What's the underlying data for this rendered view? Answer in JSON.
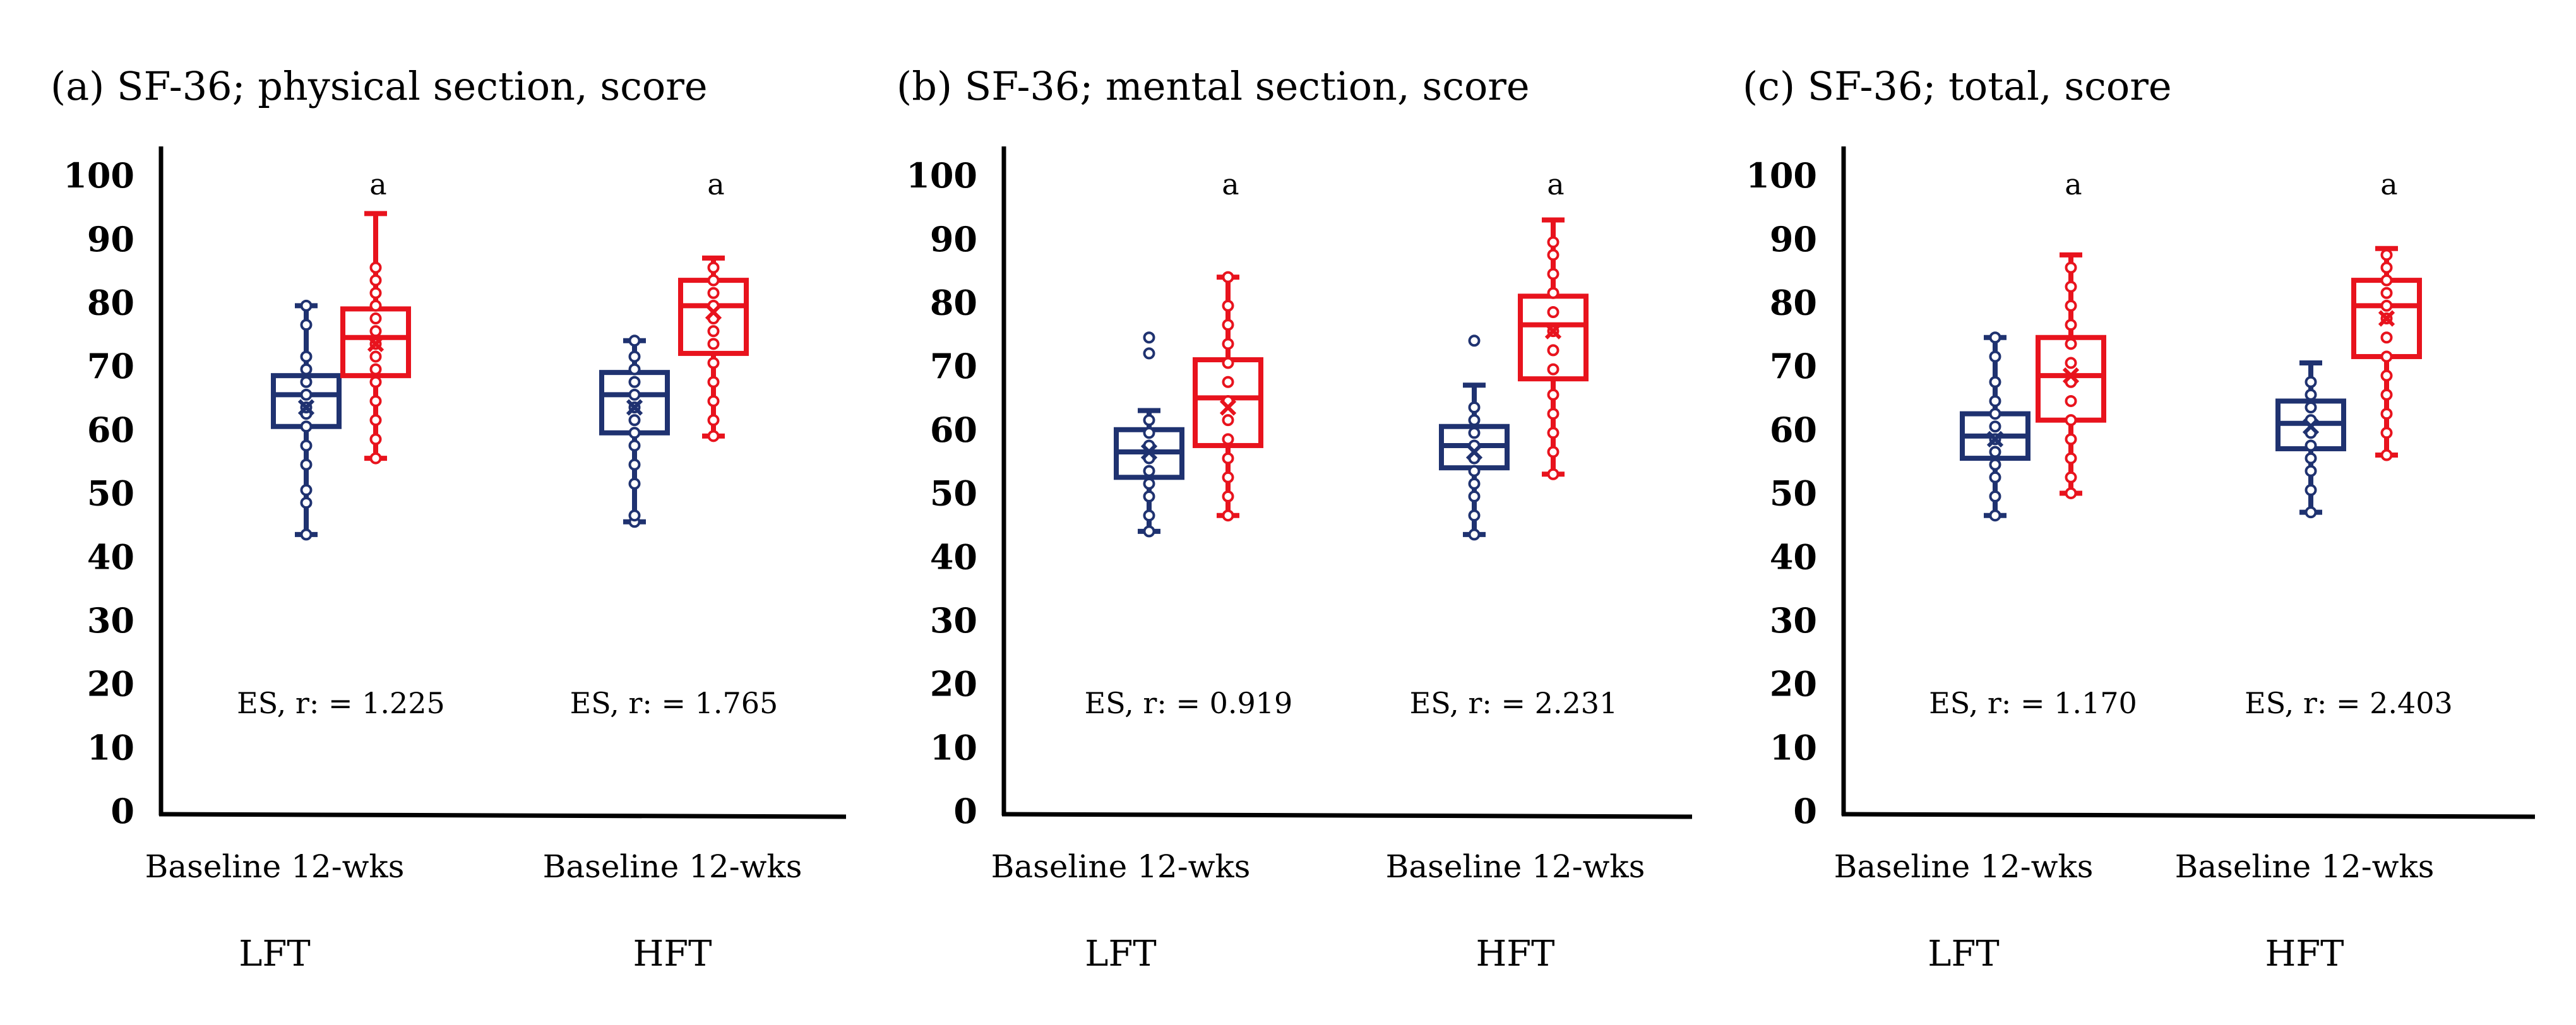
{
  "chart_data": [
    {
      "type": "box",
      "title": "(a) SF-36; physical section, score",
      "ylim": [
        0,
        100
      ],
      "yticks": [
        "0",
        "10",
        "20",
        "30",
        "40",
        "50",
        "60",
        "70",
        "80",
        "90",
        "100"
      ],
      "groups": [
        {
          "name": "LFT",
          "timepoints": "Baseline 12-wks",
          "effect_size": "ES,  r: = 1.225",
          "sig_letter": "a",
          "baseline": {
            "min": 44,
            "q1": 61,
            "median": 66,
            "q3": 69,
            "max": 80,
            "mean": 64,
            "points": [
              44,
              49,
              51,
              55,
              58,
              61,
              63,
              64,
              66,
              68,
              70,
              72,
              77,
              80
            ]
          },
          "week12": {
            "min": 56,
            "q1": 69,
            "median": 75,
            "q3": 79.5,
            "max": 94.5,
            "mean": 74,
            "points": [
              56,
              59,
              62,
              65,
              68,
              70,
              72,
              74,
              76,
              78,
              80,
              82,
              84,
              86
            ]
          }
        },
        {
          "name": "HFT",
          "timepoints": "Baseline 12-wks",
          "effect_size": "ES,  r: = 1.765",
          "sig_letter": "a",
          "baseline": {
            "min": 46,
            "q1": 60,
            "median": 66,
            "q3": 69.5,
            "max": 74.5,
            "mean": 64,
            "points": [
              46,
              47,
              52,
              55,
              58,
              60,
              62,
              64,
              66,
              68,
              70,
              72,
              74.5
            ]
          },
          "week12": {
            "min": 59.5,
            "q1": 72.5,
            "median": 80,
            "q3": 84,
            "max": 87.5,
            "mean": 79,
            "points": [
              59.5,
              62,
              65,
              68,
              71,
              74,
              76,
              78,
              80,
              82,
              84,
              86
            ]
          }
        }
      ]
    },
    {
      "type": "box",
      "title": "(b) SF-36; mental section, score",
      "ylim": [
        0,
        100
      ],
      "yticks": [
        "0",
        "10",
        "20",
        "30",
        "40",
        "50",
        "60",
        "70",
        "80",
        "90",
        "100"
      ],
      "groups": [
        {
          "name": "LFT",
          "timepoints": "Baseline 12-wks",
          "effect_size": "ES,  r: = 0.919",
          "sig_letter": "a",
          "baseline": {
            "min": 44.5,
            "q1": 53,
            "median": 57,
            "q3": 60.5,
            "max": 63.5,
            "mean": 57,
            "points": [
              44.5,
              47,
              50,
              52,
              54,
              56,
              58,
              60,
              62,
              72.5,
              75
            ]
          },
          "week12": {
            "min": 47,
            "q1": 58,
            "median": 65.5,
            "q3": 71.5,
            "max": 84.5,
            "mean": 64,
            "points": [
              47,
              50,
              53,
              56,
              59,
              62,
              65,
              68,
              71,
              74,
              77,
              80,
              84.5
            ]
          }
        },
        {
          "name": "HFT",
          "timepoints": "Baseline 12-wks",
          "effect_size": "ES,  r: = 2.231",
          "sig_letter": "a",
          "baseline": {
            "min": 44,
            "q1": 54.5,
            "median": 58,
            "q3": 61,
            "max": 67.5,
            "mean": 57,
            "points": [
              44,
              47,
              50,
              52,
              54,
              56,
              58,
              60,
              62,
              64,
              74.5
            ]
          },
          "week12": {
            "min": 53.5,
            "q1": 68.5,
            "median": 77,
            "q3": 81.5,
            "max": 93.5,
            "mean": 76,
            "points": [
              53.5,
              57,
              60,
              63,
              66,
              70,
              73,
              76,
              79,
              82,
              85,
              88,
              90
            ]
          }
        }
      ]
    },
    {
      "type": "box",
      "title": "(c) SF-36; total,  score",
      "ylim": [
        0,
        100
      ],
      "yticks": [
        "0",
        "10",
        "20",
        "30",
        "40",
        "50",
        "60",
        "70",
        "80",
        "90",
        "100"
      ],
      "groups": [
        {
          "name": "LFT",
          "timepoints": "Baseline 12-wks",
          "effect_size": "ES,  r: = 1.170",
          "sig_letter": "a",
          "baseline": {
            "min": 47,
            "q1": 56,
            "median": 59.5,
            "q3": 63,
            "max": 75,
            "mean": 59,
            "points": [
              47,
              50,
              53,
              55,
              57,
              59,
              61,
              63,
              65,
              68,
              72,
              75
            ]
          },
          "week12": {
            "min": 50.5,
            "q1": 62,
            "median": 69,
            "q3": 75,
            "max": 88,
            "mean": 69,
            "points": [
              50.5,
              53,
              56,
              59,
              62,
              65,
              68,
              71,
              74,
              77,
              80,
              83,
              86
            ]
          }
        },
        {
          "name": "HFT",
          "timepoints": "Baseline 12-wks",
          "effect_size": "ES,  r: = 2.403",
          "sig_letter": "a",
          "baseline": {
            "min": 47.5,
            "q1": 57.5,
            "median": 61.5,
            "q3": 65,
            "max": 71,
            "mean": 61,
            "points": [
              47.5,
              51,
              54,
              56,
              58,
              60,
              62,
              64,
              66,
              68
            ]
          },
          "week12": {
            "min": 56.5,
            "q1": 72,
            "median": 80,
            "q3": 84,
            "max": 89,
            "mean": 78,
            "points": [
              56.5,
              60,
              63,
              66,
              69,
              72,
              75,
              78,
              80,
              82,
              84,
              86,
              88
            ]
          }
        }
      ]
    }
  ],
  "colors": {
    "baseline": "#1f3270",
    "week12": "#e8131d",
    "axis": "#000000"
  }
}
